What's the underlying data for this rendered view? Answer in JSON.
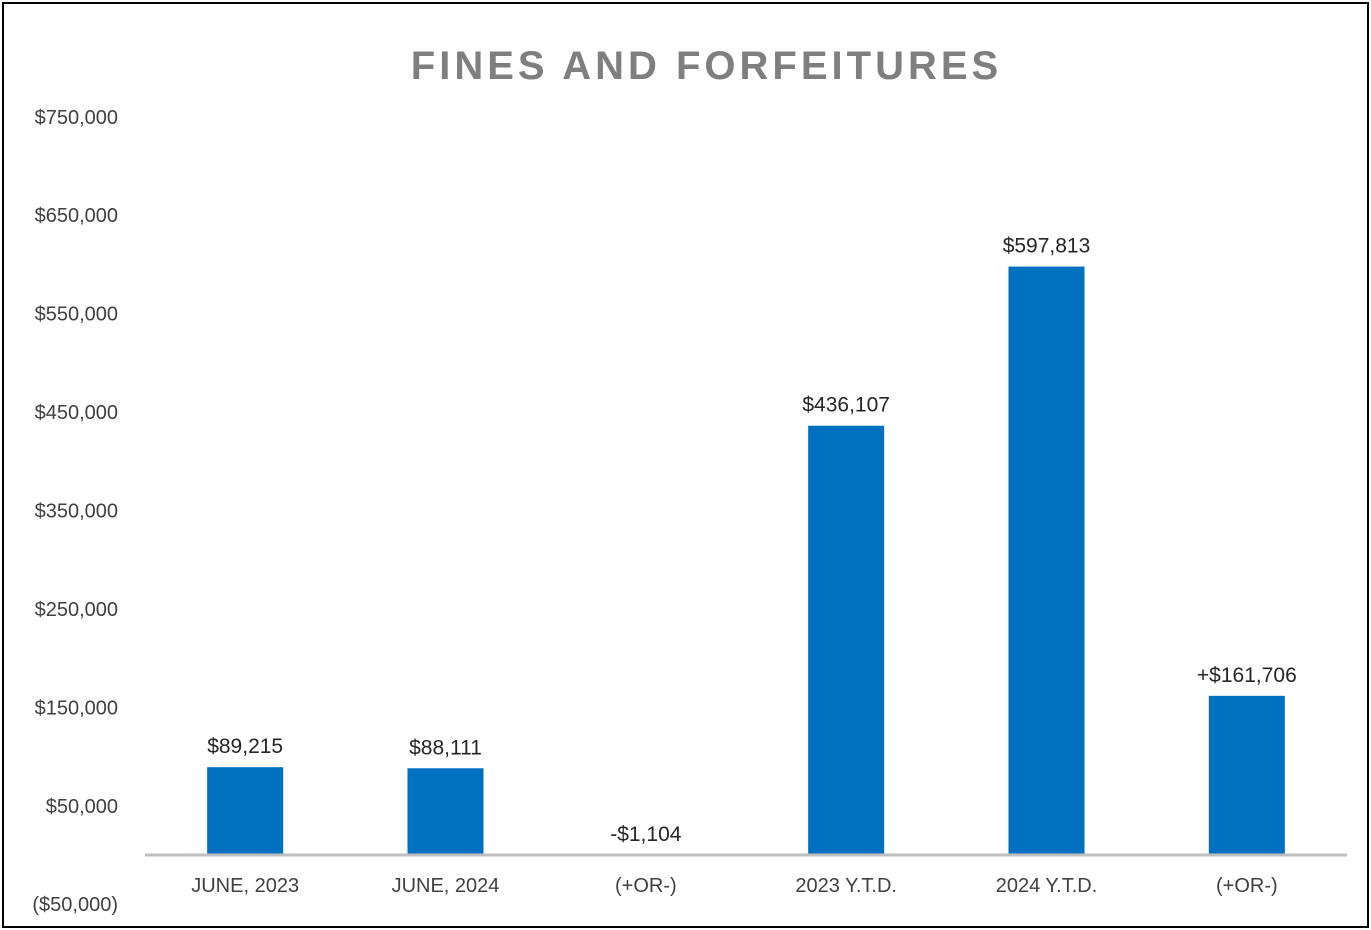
{
  "chart_data": {
    "type": "bar",
    "title": "FINES AND FORFEITURES",
    "xlabel": "",
    "ylabel": "",
    "categories": [
      "JUNE, 2023",
      "JUNE, 2024",
      "(+OR-)",
      "2023 Y.T.D.",
      "2024 Y.T.D.",
      "(+OR-)"
    ],
    "values": [
      89215,
      88111,
      -1104,
      436107,
      597813,
      161706
    ],
    "data_labels": [
      "$89,215",
      "$88,111",
      "-$1,104",
      "$436,107",
      "$597,813",
      "+$161,706"
    ],
    "ylim": [
      -50000,
      750000
    ],
    "yticks": [
      -50000,
      50000,
      150000,
      250000,
      350000,
      450000,
      550000,
      650000,
      750000
    ],
    "ytick_labels": [
      "($50,000)",
      "$50,000",
      "$150,000",
      "$250,000",
      "$350,000",
      "$450,000",
      "$550,000",
      "$650,000",
      "$750,000"
    ],
    "grid": false,
    "legend": "none",
    "bar_color": "#0070c0",
    "axis_color": "#bfbfbf",
    "title_color": "#7f7f7f"
  }
}
